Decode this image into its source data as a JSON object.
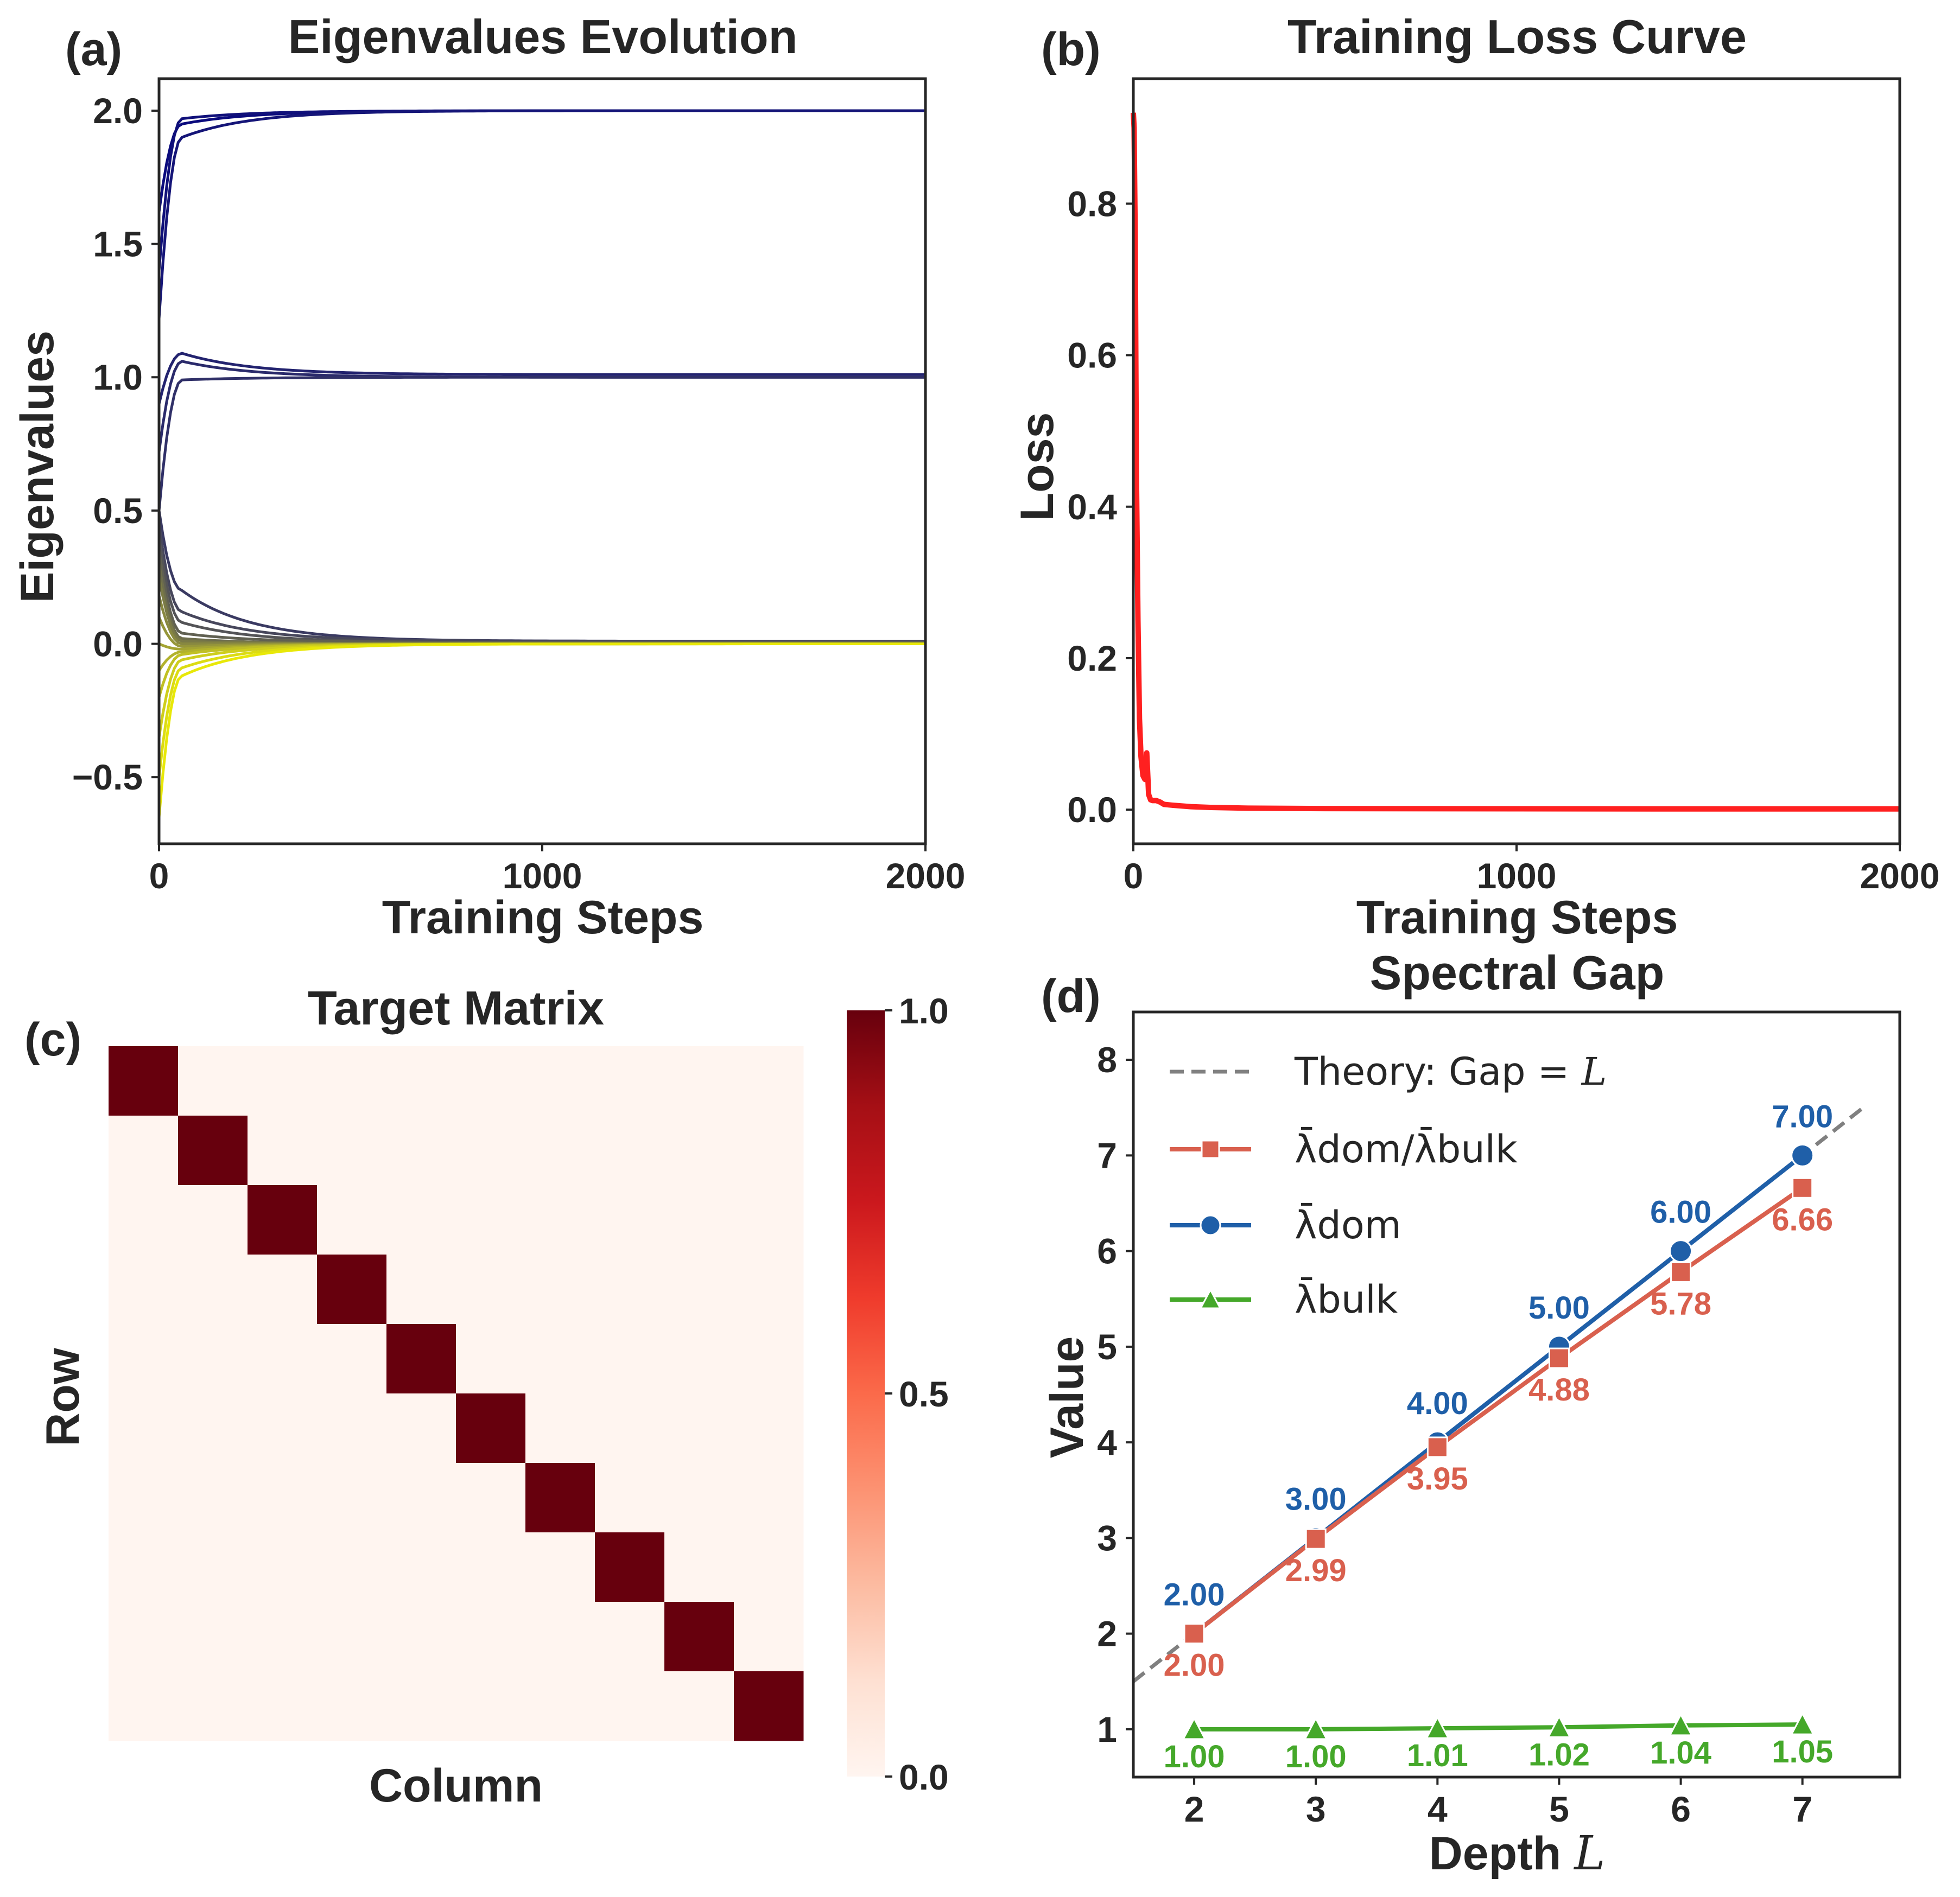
{
  "panels": {
    "a": {
      "letter": "(a)",
      "title": "Eigenvalues Evolution",
      "xlabel": "Training Steps",
      "ylabel": "Eigenvalues"
    },
    "b": {
      "letter": "(b)",
      "title": "Training Loss Curve",
      "xlabel": "Training Steps",
      "ylabel": "Loss"
    },
    "c": {
      "letter": "(c)",
      "title": "Target Matrix",
      "xlabel": "Column",
      "ylabel": "Row"
    },
    "d": {
      "letter": "(d)",
      "title": "Spectral Gap",
      "xlabel": "Depth",
      "xlabel_var": "L",
      "ylabel": "Value"
    }
  },
  "chart_data": [
    {
      "id": "a",
      "type": "line",
      "title": "Eigenvalues Evolution",
      "xlabel": "Training Steps",
      "ylabel": "Eigenvalues",
      "xlim": [
        0,
        2000
      ],
      "ylim": [
        -0.75,
        2.12
      ],
      "xticks": [
        0,
        1000,
        2000
      ],
      "xtick_labels": [
        "0",
        "1000",
        "2000"
      ],
      "yticks": [
        -0.5,
        0.0,
        0.5,
        1.0,
        1.5,
        2.0
      ],
      "ytick_labels": [
        "−0.5",
        "0.0",
        "0.5",
        "1.0",
        "1.5",
        "2.0"
      ],
      "grid": false,
      "colormap": [
        "#00007f",
        "#ffff00"
      ],
      "series": [
        {
          "start": 1.62,
          "peak": 1.95,
          "final": 2.0,
          "color": "#0a0a7d"
        },
        {
          "start": 1.4,
          "peak": 1.97,
          "final": 2.0,
          "color": "#10107a"
        },
        {
          "start": 1.22,
          "peak": 1.9,
          "final": 2.0,
          "color": "#151578"
        },
        {
          "start": 0.9,
          "peak": 1.09,
          "final": 1.01,
          "color": "#23236f"
        },
        {
          "start": 0.72,
          "peak": 1.06,
          "final": 1.0,
          "color": "#2a2a6b"
        },
        {
          "start": 0.5,
          "peak": 0.99,
          "final": 1.0,
          "color": "#303068"
        },
        {
          "start": 0.5,
          "peak": 0.2,
          "final": 0.01,
          "color": "#3a3a62"
        },
        {
          "start": 0.45,
          "peak": 0.12,
          "final": 0.01,
          "color": "#47475c"
        },
        {
          "start": 0.4,
          "peak": 0.08,
          "final": 0.005,
          "color": "#545457"
        },
        {
          "start": 0.35,
          "peak": 0.04,
          "final": 0.005,
          "color": "#606052"
        },
        {
          "start": 0.3,
          "peak": 0.02,
          "final": 0.0,
          "color": "#6d6d4c"
        },
        {
          "start": 0.25,
          "peak": 0.01,
          "final": 0.0,
          "color": "#7a7a46"
        },
        {
          "start": 0.18,
          "peak": 0.0,
          "final": 0.0,
          "color": "#888840"
        },
        {
          "start": 0.1,
          "peak": -0.01,
          "final": 0.0,
          "color": "#96963a"
        },
        {
          "start": 0.0,
          "peak": -0.02,
          "final": 0.0,
          "color": "#a4a433"
        },
        {
          "start": -0.1,
          "peak": -0.03,
          "final": 0.0,
          "color": "#b2b22c"
        },
        {
          "start": -0.2,
          "peak": -0.04,
          "final": 0.0,
          "color": "#c0c024"
        },
        {
          "start": -0.35,
          "peak": -0.06,
          "final": 0.0,
          "color": "#cece1c"
        },
        {
          "start": -0.5,
          "peak": -0.09,
          "final": 0.0,
          "color": "#dcdc12"
        },
        {
          "start": -0.65,
          "peak": -0.12,
          "final": 0.0,
          "color": "#e8e808"
        }
      ]
    },
    {
      "id": "b",
      "type": "line",
      "title": "Training Loss Curve",
      "xlabel": "Training Steps",
      "ylabel": "Loss",
      "xlim": [
        0,
        2000
      ],
      "ylim": [
        -0.045,
        0.965
      ],
      "xticks": [
        0,
        1000,
        2000
      ],
      "xtick_labels": [
        "0",
        "1000",
        "2000"
      ],
      "yticks": [
        0.0,
        0.2,
        0.4,
        0.6,
        0.8
      ],
      "ytick_labels": [
        "0.0",
        "0.2",
        "0.4",
        "0.6",
        "0.8"
      ],
      "grid": false,
      "color": "#ff2020",
      "x": [
        0,
        2,
        5,
        8,
        12,
        16,
        20,
        25,
        30,
        35,
        40,
        45,
        50,
        60,
        70,
        80,
        100,
        150,
        200,
        300,
        500,
        1000,
        1500,
        2000
      ],
      "y": [
        0.92,
        0.9,
        0.75,
        0.45,
        0.25,
        0.12,
        0.07,
        0.045,
        0.04,
        0.075,
        0.02,
        0.013,
        0.012,
        0.012,
        0.01,
        0.007,
        0.006,
        0.004,
        0.003,
        0.002,
        0.0015,
        0.0012,
        0.001,
        0.001
      ]
    },
    {
      "id": "c",
      "type": "heatmap",
      "title": "Target Matrix",
      "xlabel": "Column",
      "ylabel": "Row",
      "size": 10,
      "matrix": [
        [
          1,
          0,
          0,
          0,
          0,
          0,
          0,
          0,
          0,
          0
        ],
        [
          0,
          1,
          0,
          0,
          0,
          0,
          0,
          0,
          0,
          0
        ],
        [
          0,
          0,
          1,
          0,
          0,
          0,
          0,
          0,
          0,
          0
        ],
        [
          0,
          0,
          0,
          1,
          0,
          0,
          0,
          0,
          0,
          0
        ],
        [
          0,
          0,
          0,
          0,
          1,
          0,
          0,
          0,
          0,
          0
        ],
        [
          0,
          0,
          0,
          0,
          0,
          1,
          0,
          0,
          0,
          0
        ],
        [
          0,
          0,
          0,
          0,
          0,
          0,
          1,
          0,
          0,
          0
        ],
        [
          0,
          0,
          0,
          0,
          0,
          0,
          0,
          1,
          0,
          0
        ],
        [
          0,
          0,
          0,
          0,
          0,
          0,
          0,
          0,
          1,
          0
        ],
        [
          0,
          0,
          0,
          0,
          0,
          0,
          0,
          0,
          0,
          1
        ]
      ],
      "colormap": "Reds",
      "color_low": "#fff5f0",
      "color_high": "#67000d",
      "colorbar_ticks": [
        0.0,
        0.5,
        1.0
      ],
      "colorbar_tick_labels": [
        "0.0",
        "0.5",
        "1.0"
      ]
    },
    {
      "id": "d",
      "type": "line",
      "title": "Spectral Gap",
      "xlabel": "Depth L",
      "ylabel": "Value",
      "xlim": [
        1.5,
        7.8
      ],
      "ylim": [
        0.5,
        8.5
      ],
      "xticks": [
        2,
        3,
        4,
        5,
        6,
        7
      ],
      "xtick_labels": [
        "2",
        "3",
        "4",
        "5",
        "6",
        "7"
      ],
      "yticks": [
        1,
        2,
        3,
        4,
        5,
        6,
        7,
        8
      ],
      "ytick_labels": [
        "1",
        "2",
        "3",
        "4",
        "5",
        "6",
        "7",
        "8"
      ],
      "grid": false,
      "legend_position": "top-left",
      "x": [
        2,
        3,
        4,
        5,
        6,
        7
      ],
      "theory": {
        "name": "Theory: Gap",
        "name_suffix": "= L",
        "x": [
          1.5,
          7.5
        ],
        "y": [
          1.5,
          7.5
        ],
        "color": "#808080"
      },
      "series": [
        {
          "name": "λ̄dom/λ̄bulk",
          "color": "#d9604e",
          "marker": "square",
          "values": [
            2.0,
            2.99,
            3.95,
            4.88,
            5.78,
            6.66
          ],
          "labels": [
            "2.00",
            "2.99",
            "3.95",
            "4.88",
            "5.78",
            "6.66"
          ]
        },
        {
          "name": "λ̄dom",
          "color": "#1f5fa8",
          "marker": "circle",
          "values": [
            2.0,
            3.0,
            4.0,
            5.0,
            6.0,
            7.0
          ],
          "labels": [
            "2.00",
            "3.00",
            "4.00",
            "5.00",
            "6.00",
            "7.00"
          ]
        },
        {
          "name": "λ̄bulk",
          "color": "#45a82a",
          "marker": "triangle",
          "values": [
            1.0,
            1.0,
            1.01,
            1.02,
            1.04,
            1.05
          ],
          "labels": [
            "1.00",
            "1.00",
            "1.01",
            "1.02",
            "1.04",
            "1.05"
          ]
        }
      ]
    }
  ]
}
